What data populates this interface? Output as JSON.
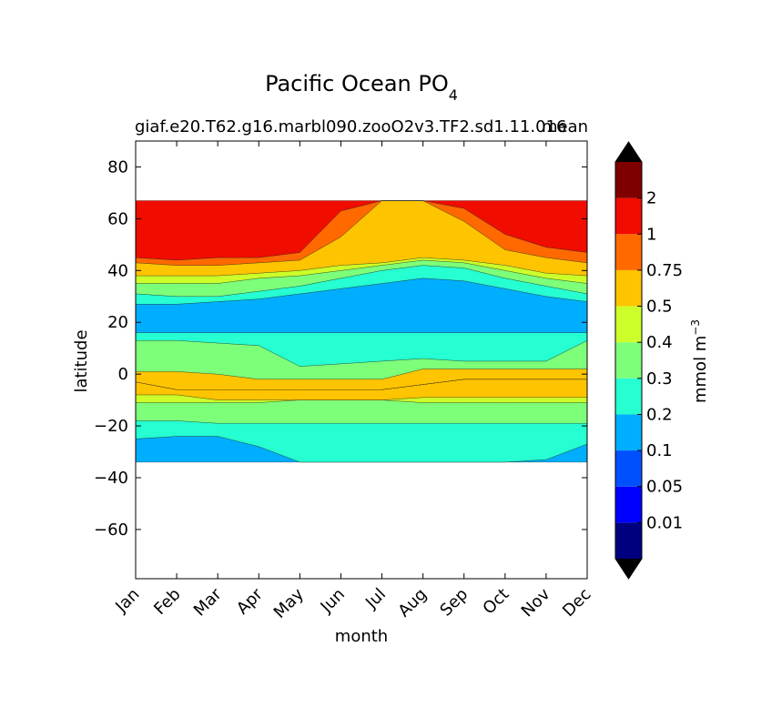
{
  "chart_data": {
    "type": "heatmap",
    "plot_kind": "filled contour (latitude vs month)",
    "title_main": "Pacific Ocean PO",
    "title_subscript": "4",
    "subtitle_left": "giaf.e20.T62.g16.marbl090.zooO2v3.TF2.sd1.11.016",
    "subtitle_right": "mean",
    "xlabel": "month",
    "ylabel": "latitude",
    "x_ticks": [
      "Jan",
      "Feb",
      "Mar",
      "Apr",
      "May",
      "Jun",
      "Jul",
      "Aug",
      "Sep",
      "Oct",
      "Nov",
      "Dec"
    ],
    "y_ticks": [
      80,
      60,
      40,
      20,
      0,
      -20,
      -40,
      -60
    ],
    "y_tick_labels": [
      "80",
      "60",
      "40",
      "20",
      "0",
      "−20",
      "−40",
      "−60"
    ],
    "ylim": [
      -79,
      90
    ],
    "data_lat_range": [
      -34,
      67
    ],
    "colorbar": {
      "label_main": "mmol m",
      "label_exp": "−3",
      "levels": [
        0.01,
        0.05,
        0.1,
        0.2,
        0.3,
        0.4,
        0.5,
        0.75,
        1,
        2
      ],
      "level_labels": [
        "0.01",
        "0.05",
        "0.1",
        "0.2",
        "0.3",
        "0.4",
        "0.5",
        "0.75",
        "1",
        "2"
      ],
      "colors": [
        "#00007f",
        "#0000ff",
        "#0050ff",
        "#00aeff",
        "#25ffd1",
        "#7dff7a",
        "#ccff2a",
        "#ffc400",
        "#ff6900",
        "#f10c00",
        "#7f0000"
      ],
      "under_color": "#000000",
      "over_color": "#000000",
      "extend": "both"
    },
    "bands_by_month": {
      "months": [
        "Jan",
        "Feb",
        "Mar",
        "Apr",
        "May",
        "Jun",
        "Jul",
        "Aug",
        "Sep",
        "Oct",
        "Nov",
        "Dec"
      ],
      "bands": [
        {
          "bin": 3,
          "lat": [
            [
              -34,
              -25
            ],
            [
              -34,
              -24
            ],
            [
              -34,
              -24
            ],
            [
              -34,
              -28
            ],
            [
              -34,
              -34
            ],
            [
              -34,
              -34
            ],
            [
              -34,
              -34
            ],
            [
              -34,
              -34
            ],
            [
              -34,
              -34
            ],
            [
              -34,
              -34
            ],
            [
              -34,
              -33
            ],
            [
              -34,
              -27
            ]
          ]
        },
        {
          "bin": 4,
          "lat": [
            [
              -25,
              -18
            ],
            [
              -24,
              -18
            ],
            [
              -24,
              -19
            ],
            [
              -28,
              -19
            ],
            [
              -34,
              -19
            ],
            [
              -34,
              -19
            ],
            [
              -34,
              -19
            ],
            [
              -34,
              -19
            ],
            [
              -34,
              -19
            ],
            [
              -34,
              -19
            ],
            [
              -33,
              -19
            ],
            [
              -27,
              -19
            ]
          ]
        },
        {
          "bin": 5,
          "lat": [
            [
              -18,
              -11
            ],
            [
              -18,
              -11
            ],
            [
              -19,
              -11
            ],
            [
              -19,
              -11
            ],
            [
              -19,
              -10
            ],
            [
              -19,
              -10
            ],
            [
              -19,
              -10
            ],
            [
              -19,
              -11
            ],
            [
              -19,
              -11
            ],
            [
              -19,
              -11
            ],
            [
              -19,
              -11
            ],
            [
              -19,
              -11
            ]
          ]
        },
        {
          "bin": 6,
          "lat": [
            [
              -11,
              -8
            ],
            [
              -11,
              -8
            ],
            [
              -11,
              -10
            ],
            [
              -11,
              -10
            ],
            [
              -10,
              -10
            ],
            [
              -10,
              -10
            ],
            [
              -10,
              -10
            ],
            [
              -11,
              -9
            ],
            [
              -11,
              -9
            ],
            [
              -11,
              -9
            ],
            [
              -11,
              -9
            ],
            [
              -11,
              -9
            ]
          ]
        },
        {
          "bin": 7,
          "lat": [
            [
              -8,
              -3
            ],
            [
              -8,
              -6
            ],
            [
              -10,
              -6
            ],
            [
              -10,
              -6
            ],
            [
              -10,
              -6
            ],
            [
              -10,
              -6
            ],
            [
              -10,
              -6
            ],
            [
              -9,
              -4
            ],
            [
              -9,
              -2
            ],
            [
              -9,
              -2
            ],
            [
              -9,
              -2
            ],
            [
              -9,
              -2
            ]
          ]
        },
        {
          "bin": 6,
          "lat": [
            [
              -3,
              -3
            ],
            [
              -6,
              -6
            ],
            [
              -6,
              -6
            ],
            [
              -6,
              -6
            ],
            [
              -6,
              -6
            ],
            [
              -6,
              -6
            ],
            [
              -6,
              -6
            ],
            [
              -4,
              -4
            ],
            [
              -2,
              -2
            ],
            [
              -2,
              -2
            ],
            [
              -2,
              -2
            ],
            [
              -2,
              -2
            ]
          ]
        },
        {
          "bin": 6,
          "lat": [
            [
              -3,
              -3
            ],
            [
              -6,
              -6
            ],
            [
              -6,
              -6
            ],
            [
              -6,
              -6
            ],
            [
              -6,
              -6
            ],
            [
              -6,
              -6
            ],
            [
              -6,
              -6
            ],
            [
              -4,
              -4
            ],
            [
              -2,
              -2
            ],
            [
              -2,
              -2
            ],
            [
              -2,
              -2
            ],
            [
              -2,
              -2
            ]
          ]
        },
        {
          "bin": 7,
          "lat": [
            [
              -3,
              1
            ],
            [
              -6,
              1
            ],
            [
              -6,
              0
            ],
            [
              -6,
              -2
            ],
            [
              -6,
              -2
            ],
            [
              -6,
              -2
            ],
            [
              -6,
              -2
            ],
            [
              -4,
              2
            ],
            [
              -2,
              2
            ],
            [
              -2,
              2
            ],
            [
              -2,
              2
            ],
            [
              -2,
              2
            ]
          ]
        },
        {
          "bin": 5,
          "lat": [
            [
              1,
              13
            ],
            [
              1,
              13
            ],
            [
              0,
              12
            ],
            [
              -2,
              11
            ],
            [
              -2,
              3
            ],
            [
              -2,
              4
            ],
            [
              -2,
              5
            ],
            [
              2,
              6
            ],
            [
              2,
              5
            ],
            [
              2,
              5
            ],
            [
              2,
              5
            ],
            [
              2,
              13
            ]
          ]
        },
        {
          "bin": 4,
          "lat": [
            [
              13,
              16
            ],
            [
              13,
              16
            ],
            [
              12,
              16
            ],
            [
              11,
              16
            ],
            [
              3,
              16
            ],
            [
              4,
              16
            ],
            [
              5,
              16
            ],
            [
              6,
              16
            ],
            [
              5,
              16
            ],
            [
              5,
              16
            ],
            [
              5,
              16
            ],
            [
              13,
              16
            ]
          ]
        },
        {
          "bin": 3,
          "lat": [
            [
              16,
              27
            ],
            [
              16,
              27
            ],
            [
              16,
              28
            ],
            [
              16,
              29
            ],
            [
              16,
              31
            ],
            [
              16,
              33
            ],
            [
              16,
              35
            ],
            [
              16,
              37
            ],
            [
              16,
              36
            ],
            [
              16,
              33
            ],
            [
              16,
              30
            ],
            [
              16,
              28
            ]
          ]
        },
        {
          "bin": 4,
          "lat": [
            [
              27,
              31
            ],
            [
              27,
              30
            ],
            [
              28,
              30
            ],
            [
              29,
              32
            ],
            [
              31,
              34
            ],
            [
              33,
              37
            ],
            [
              35,
              40
            ],
            [
              37,
              42
            ],
            [
              36,
              41
            ],
            [
              33,
              37
            ],
            [
              30,
              34
            ],
            [
              28,
              31
            ]
          ]
        },
        {
          "bin": 5,
          "lat": [
            [
              31,
              35
            ],
            [
              30,
              35
            ],
            [
              30,
              35
            ],
            [
              32,
              37
            ],
            [
              34,
              38
            ],
            [
              37,
              40
            ],
            [
              40,
              42
            ],
            [
              42,
              44
            ],
            [
              41,
              43
            ],
            [
              37,
              40
            ],
            [
              34,
              37
            ],
            [
              31,
              35
            ]
          ]
        },
        {
          "bin": 6,
          "lat": [
            [
              35,
              38
            ],
            [
              35,
              38
            ],
            [
              35,
              38
            ],
            [
              37,
              39
            ],
            [
              38,
              40
            ],
            [
              40,
              42
            ],
            [
              42,
              43
            ],
            [
              44,
              45
            ],
            [
              43,
              44
            ],
            [
              40,
              42
            ],
            [
              37,
              39
            ],
            [
              35,
              38
            ]
          ]
        },
        {
          "bin": 7,
          "lat": [
            [
              38,
              43
            ],
            [
              38,
              42
            ],
            [
              38,
              42
            ],
            [
              39,
              43
            ],
            [
              40,
              44
            ],
            [
              42,
              53
            ],
            [
              43,
              67
            ],
            [
              45,
              67
            ],
            [
              44,
              59
            ],
            [
              42,
              48
            ],
            [
              39,
              45
            ],
            [
              38,
              43
            ]
          ]
        },
        {
          "bin": 8,
          "lat": [
            [
              43,
              45
            ],
            [
              42,
              44
            ],
            [
              42,
              45
            ],
            [
              43,
              45
            ],
            [
              44,
              47
            ],
            [
              53,
              63
            ],
            [
              67,
              67
            ],
            [
              67,
              67
            ],
            [
              59,
              64
            ],
            [
              48,
              54
            ],
            [
              45,
              49
            ],
            [
              43,
              47
            ]
          ]
        },
        {
          "bin": 9,
          "lat": [
            [
              45,
              67
            ],
            [
              44,
              67
            ],
            [
              45,
              67
            ],
            [
              45,
              67
            ],
            [
              47,
              67
            ],
            [
              63,
              67
            ],
            [
              67,
              67
            ],
            [
              67,
              67
            ],
            [
              64,
              67
            ],
            [
              54,
              67
            ],
            [
              49,
              67
            ],
            [
              47,
              67
            ]
          ]
        }
      ]
    }
  }
}
